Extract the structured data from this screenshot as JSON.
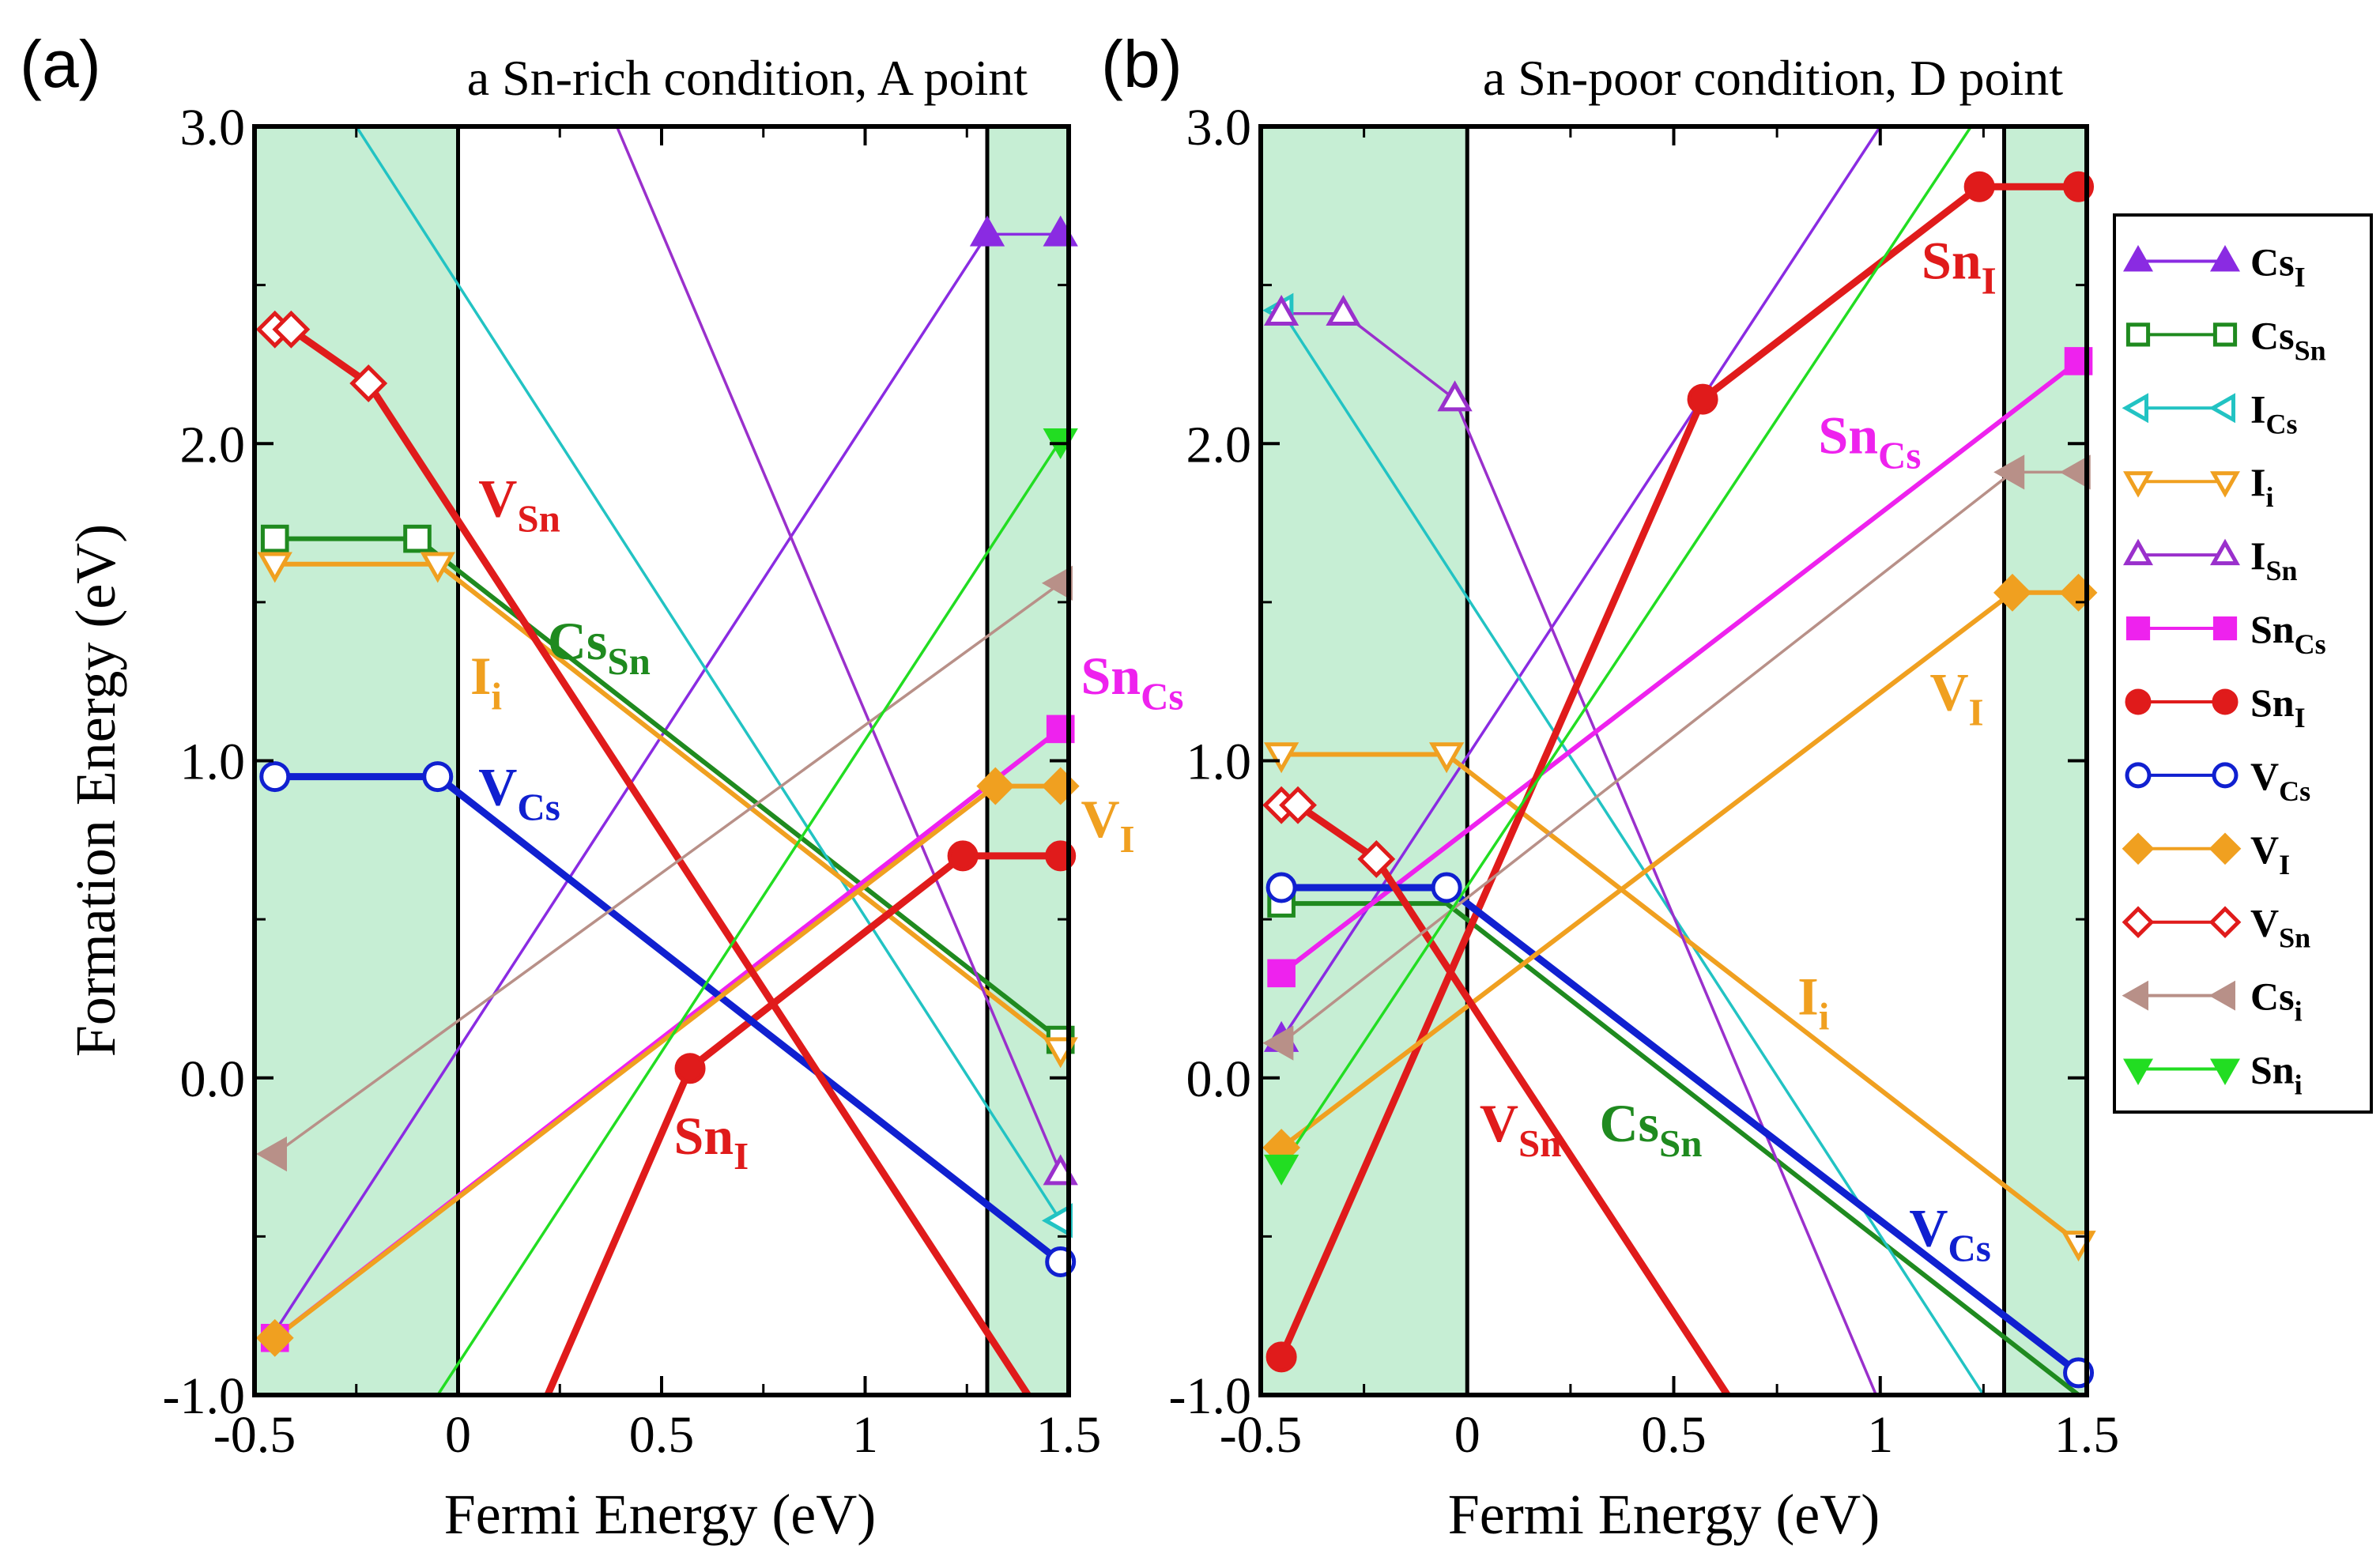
{
  "colors": {
    "band": "#c6eed4",
    "Cs_I": "#8a2be2",
    "Cs_Sn": "#1f8a1f",
    "I_Cs": "#22c3c3",
    "I_i": "#f0a020",
    "I_Sn": "#9a30cc",
    "Sn_Cs": "#ee22ee",
    "Sn_I": "#e01b1b",
    "V_Cs": "#1020d0",
    "V_I": "#f0a020",
    "V_Sn": "#e01b1b",
    "Cs_i": "#b89088",
    "Sn_i": "#22dd22"
  },
  "legend": {
    "items": [
      {
        "key": "Cs_I",
        "base": "Cs",
        "sub": "I",
        "marker": "triangle-up",
        "filled": true
      },
      {
        "key": "Cs_Sn",
        "base": "Cs",
        "sub": "Sn",
        "marker": "square",
        "filled": false
      },
      {
        "key": "I_Cs",
        "base": "I",
        "sub": "Cs",
        "marker": "triangle-left",
        "filled": false
      },
      {
        "key": "I_i",
        "base": "I",
        "sub": "i",
        "marker": "triangle-down",
        "filled": false
      },
      {
        "key": "I_Sn",
        "base": "I",
        "sub": "Sn",
        "marker": "triangle-up",
        "filled": false
      },
      {
        "key": "Sn_Cs",
        "base": "Sn",
        "sub": "Cs",
        "marker": "square",
        "filled": true
      },
      {
        "key": "Sn_I",
        "base": "Sn",
        "sub": "I",
        "marker": "circle",
        "filled": true
      },
      {
        "key": "V_Cs",
        "base": "V",
        "sub": "Cs",
        "marker": "circle",
        "filled": false
      },
      {
        "key": "V_I",
        "base": "V",
        "sub": "I",
        "marker": "diamond",
        "filled": true
      },
      {
        "key": "V_Sn",
        "base": "V",
        "sub": "Sn",
        "marker": "diamond",
        "filled": false
      },
      {
        "key": "Cs_i",
        "base": "Cs",
        "sub": "i",
        "marker": "triangle-left",
        "filled": true
      },
      {
        "key": "Sn_i",
        "base": "Sn",
        "sub": "i",
        "marker": "triangle-down",
        "filled": true
      }
    ]
  },
  "chart_data": [
    {
      "type": "line",
      "panel_label": "(a)",
      "title": "a Sn-rich condition, A point",
      "xlabel": "Fermi Energy (eV)",
      "ylabel": "Formation Energy (eV)",
      "xlim": [
        -0.5,
        1.5
      ],
      "ylim": [
        -1.0,
        3.0
      ],
      "xticks": [
        -0.5,
        0,
        0.5,
        1,
        1.5
      ],
      "xtick_labels": [
        "-0.5",
        "0",
        "0.5",
        "1",
        "1.5"
      ],
      "yticks": [
        -1.0,
        0.0,
        1.0,
        2.0,
        3.0
      ],
      "ytick_labels": [
        "-1.0",
        "0.0",
        "1.0",
        "2.0",
        "3.0"
      ],
      "shaded_regions": [
        [
          -0.5,
          0.0
        ],
        [
          1.3,
          1.5
        ]
      ],
      "vertical_lines": [
        0.0,
        1.3
      ],
      "series": [
        {
          "key": "Cs_I",
          "x": [
            -0.45,
            1.3,
            1.48
          ],
          "y": [
            -0.8,
            2.66,
            2.66
          ],
          "marker_x": [
            1.3,
            1.48
          ],
          "marker_y": [
            2.66,
            2.66
          ],
          "width": "thin"
        },
        {
          "key": "Cs_Sn",
          "x": [
            -0.45,
            -0.1,
            1.48
          ],
          "y": [
            1.7,
            1.7,
            0.12
          ],
          "marker_x": [
            -0.45,
            -0.1,
            1.48
          ],
          "marker_y": [
            1.7,
            1.7,
            0.12
          ],
          "width": "medium"
        },
        {
          "key": "I_Cs",
          "x": [
            -0.25,
            1.48
          ],
          "y": [
            3.0,
            -0.45
          ],
          "marker_x": [
            1.48
          ],
          "marker_y": [
            -0.45
          ],
          "width": "thin"
        },
        {
          "key": "I_i",
          "x": [
            -0.45,
            -0.05,
            1.48
          ],
          "y": [
            1.62,
            1.62,
            0.09
          ],
          "marker_x": [
            -0.45,
            -0.05,
            1.48
          ],
          "marker_y": [
            1.62,
            1.62,
            0.09
          ],
          "width": "medium"
        },
        {
          "key": "I_Sn",
          "x": [
            0.39,
            1.48
          ],
          "y": [
            3.0,
            -0.3
          ],
          "marker_x": [
            1.48
          ],
          "marker_y": [
            -0.3
          ],
          "width": "thin"
        },
        {
          "key": "Sn_Cs",
          "x": [
            -0.45,
            1.48
          ],
          "y": [
            -0.82,
            1.1
          ],
          "marker_x": [
            -0.45,
            1.48
          ],
          "marker_y": [
            -0.82,
            1.1
          ],
          "width": "medium"
        },
        {
          "key": "Sn_I",
          "x": [
            0.22,
            0.57,
            1.24,
            1.48
          ],
          "y": [
            -1.0,
            0.03,
            0.7,
            0.7
          ],
          "marker_x": [
            0.57,
            1.24,
            1.48
          ],
          "marker_y": [
            0.03,
            0.7,
            0.7
          ],
          "width": "thick"
        },
        {
          "key": "V_Cs",
          "x": [
            -0.45,
            -0.05,
            1.48
          ],
          "y": [
            0.95,
            0.95,
            -0.58
          ],
          "marker_x": [
            -0.45,
            -0.05,
            1.48
          ],
          "marker_y": [
            0.95,
            0.95,
            -0.58
          ],
          "width": "thick"
        },
        {
          "key": "V_I",
          "x": [
            -0.45,
            1.32,
            1.48
          ],
          "y": [
            -0.82,
            0.92,
            0.92
          ],
          "marker_x": [
            -0.45,
            1.32,
            1.48
          ],
          "marker_y": [
            -0.82,
            0.92,
            0.92
          ],
          "width": "medium"
        },
        {
          "key": "V_Sn",
          "x": [
            -0.45,
            -0.41,
            -0.22,
            1.4
          ],
          "y": [
            2.36,
            2.36,
            2.19,
            -1.0
          ],
          "marker_x": [
            -0.45,
            -0.41,
            -0.22
          ],
          "marker_y": [
            2.36,
            2.36,
            2.19
          ],
          "width": "thick"
        },
        {
          "key": "Cs_i",
          "x": [
            -0.45,
            1.48
          ],
          "y": [
            -0.24,
            1.56
          ],
          "marker_x": [
            -0.45,
            1.48
          ],
          "marker_y": [
            -0.24,
            1.56
          ],
          "width": "thin"
        },
        {
          "key": "Sn_i",
          "x": [
            -0.05,
            1.48
          ],
          "y": [
            -1.0,
            2.01
          ],
          "marker_x": [
            1.48
          ],
          "marker_y": [
            2.01
          ],
          "width": "thin"
        }
      ],
      "annotations": [
        {
          "key": "V_Sn",
          "base": "V",
          "sub": "Sn",
          "x": 0.05,
          "y": 1.77
        },
        {
          "key": "Cs_Sn",
          "base": "Cs",
          "sub": "Sn",
          "x": 0.22,
          "y": 1.32
        },
        {
          "key": "I_i",
          "base": "I",
          "sub": "i",
          "x": 0.03,
          "y": 1.21
        },
        {
          "key": "V_Cs",
          "base": "V",
          "sub": "Cs",
          "x": 0.05,
          "y": 0.86
        },
        {
          "key": "Sn_I",
          "base": "Sn",
          "sub": "I",
          "x": 0.53,
          "y": -0.24
        },
        {
          "key": "Sn_Cs",
          "base": "Sn",
          "sub": "Cs",
          "x": 1.53,
          "y": 1.21
        },
        {
          "key": "V_I",
          "base": "V",
          "sub": "I",
          "x": 1.53,
          "y": 0.76
        }
      ]
    },
    {
      "type": "line",
      "panel_label": "(b)",
      "title": "a Sn-poor condition, D point",
      "xlabel": "Fermi Energy (eV)",
      "ylabel": "Formation Energy (eV)",
      "xlim": [
        -0.5,
        1.5
      ],
      "ylim": [
        -1.0,
        3.0
      ],
      "xticks": [
        -0.5,
        0,
        0.5,
        1,
        1.5
      ],
      "xtick_labels": [
        "-0.5",
        "0",
        "0.5",
        "1",
        "1.5"
      ],
      "yticks": [
        -1.0,
        0.0,
        1.0,
        2.0,
        3.0
      ],
      "ytick_labels": [
        "-1.0",
        "0.0",
        "1.0",
        "2.0",
        "3.0"
      ],
      "shaded_regions": [
        [
          -0.5,
          0.0
        ],
        [
          1.3,
          1.5
        ]
      ],
      "vertical_lines": [
        0.0,
        1.3
      ],
      "series": [
        {
          "key": "Cs_I",
          "x": [
            -0.45,
            1.0
          ],
          "y": [
            0.12,
            3.0
          ],
          "marker_x": [
            -0.45
          ],
          "marker_y": [
            0.12
          ],
          "width": "thin"
        },
        {
          "key": "Cs_Sn",
          "x": [
            -0.45,
            -0.05,
            1.48
          ],
          "y": [
            0.55,
            0.55,
            -1.0
          ],
          "marker_x": [
            -0.45
          ],
          "marker_y": [
            0.55
          ],
          "width": "medium"
        },
        {
          "key": "I_Cs",
          "x": [
            -0.45,
            1.25
          ],
          "y": [
            2.42,
            -1.0
          ],
          "marker_x": [
            -0.45
          ],
          "marker_y": [
            2.42
          ],
          "width": "thin"
        },
        {
          "key": "I_i",
          "x": [
            -0.45,
            -0.05,
            1.48
          ],
          "y": [
            1.02,
            1.02,
            -0.52
          ],
          "marker_x": [
            -0.45,
            -0.05,
            1.48
          ],
          "marker_y": [
            1.02,
            1.02,
            -0.52
          ],
          "width": "medium"
        },
        {
          "key": "I_Sn",
          "x": [
            -0.45,
            -0.3,
            -0.03,
            0.99
          ],
          "y": [
            2.41,
            2.41,
            2.14,
            -1.0
          ],
          "marker_x": [
            -0.45,
            -0.3,
            -0.03
          ],
          "marker_y": [
            2.41,
            2.41,
            2.14
          ],
          "width": "thin"
        },
        {
          "key": "Sn_Cs",
          "x": [
            -0.45,
            1.48
          ],
          "y": [
            0.33,
            2.26
          ],
          "marker_x": [
            -0.45,
            1.48
          ],
          "marker_y": [
            0.33,
            2.26
          ],
          "width": "medium"
        },
        {
          "key": "Sn_I",
          "x": [
            -0.45,
            0.57,
            1.24,
            1.48
          ],
          "y": [
            -0.88,
            2.14,
            2.81,
            2.81
          ],
          "marker_x": [
            -0.45,
            0.57,
            1.24,
            1.48
          ],
          "marker_y": [
            -0.88,
            2.14,
            2.81,
            2.81
          ],
          "width": "thick"
        },
        {
          "key": "V_Cs",
          "x": [
            -0.45,
            -0.05,
            1.48
          ],
          "y": [
            0.6,
            0.6,
            -0.93
          ],
          "marker_x": [
            -0.45,
            -0.05,
            1.48
          ],
          "marker_y": [
            0.6,
            0.6,
            -0.93
          ],
          "width": "thick"
        },
        {
          "key": "V_I",
          "x": [
            -0.45,
            1.32,
            1.48
          ],
          "y": [
            -0.22,
            1.53,
            1.53
          ],
          "marker_x": [
            -0.45,
            1.32,
            1.48
          ],
          "marker_y": [
            -0.22,
            1.53,
            1.53
          ],
          "width": "medium"
        },
        {
          "key": "V_Sn",
          "x": [
            -0.45,
            -0.41,
            -0.22,
            0.63
          ],
          "y": [
            0.86,
            0.86,
            0.69,
            -1.0
          ],
          "marker_x": [
            -0.45,
            -0.41,
            -0.22
          ],
          "marker_y": [
            0.86,
            0.86,
            0.69
          ],
          "width": "thick"
        },
        {
          "key": "Cs_i",
          "x": [
            -0.45,
            1.32,
            1.48
          ],
          "y": [
            0.11,
            1.91,
            1.91
          ],
          "marker_x": [
            -0.45,
            1.32,
            1.48
          ],
          "marker_y": [
            0.11,
            1.91,
            1.91
          ],
          "width": "thin"
        },
        {
          "key": "Sn_i",
          "x": [
            -0.45,
            1.22
          ],
          "y": [
            -0.28,
            3.0
          ],
          "marker_x": [
            -0.45
          ],
          "marker_y": [
            -0.28
          ],
          "width": "thin"
        }
      ],
      "annotations": [
        {
          "key": "Sn_I",
          "base": "Sn",
          "sub": "I",
          "x": 1.1,
          "y": 2.52
        },
        {
          "key": "Sn_Cs",
          "base": "Sn",
          "sub": "Cs",
          "x": 0.85,
          "y": 1.97
        },
        {
          "key": "V_I",
          "base": "V",
          "sub": "I",
          "x": 1.12,
          "y": 1.16
        },
        {
          "key": "I_i",
          "base": "I",
          "sub": "i",
          "x": 0.8,
          "y": 0.2
        },
        {
          "key": "V_Sn",
          "base": "V",
          "sub": "Sn",
          "x": 0.03,
          "y": -0.2
        },
        {
          "key": "Cs_Sn",
          "base": "Cs",
          "sub": "Sn",
          "x": 0.32,
          "y": -0.2
        },
        {
          "key": "V_Cs",
          "base": "V",
          "sub": "Cs",
          "x": 1.07,
          "y": -0.53
        }
      ]
    }
  ]
}
